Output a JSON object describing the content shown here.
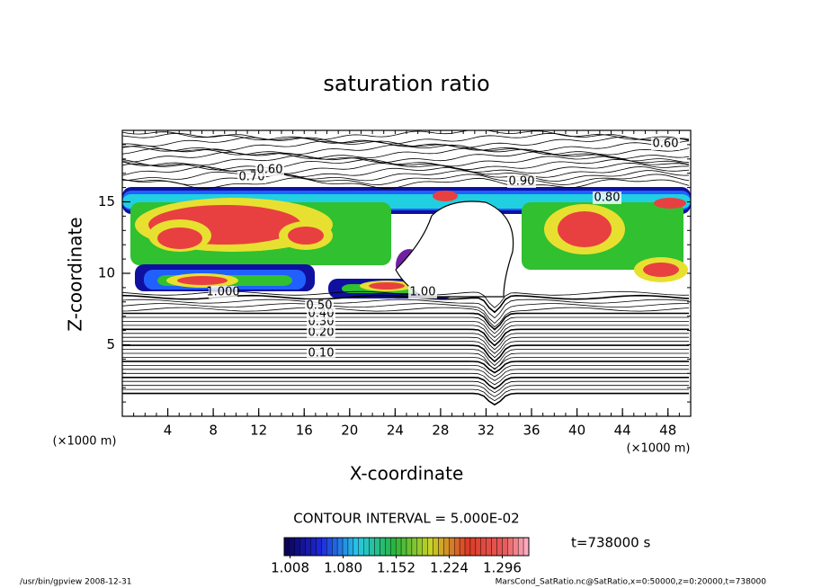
{
  "chart_data": {
    "type": "contour",
    "title": "saturation ratio",
    "x_label": "X-coordinate",
    "y_label": "Z-coordinate",
    "x_unit": "(×1000 m)",
    "y_unit": "(×1000 m)",
    "xlim": [
      0,
      50
    ],
    "ylim": [
      0,
      20
    ],
    "xticks": [
      4,
      8,
      12,
      16,
      20,
      24,
      28,
      32,
      36,
      40,
      44,
      48
    ],
    "yticks": [
      5,
      10,
      15
    ],
    "contour_interval_text": "CONTOUR INTERVAL = 5.000E-02",
    "contour_labels": [
      "0.10",
      "0.20",
      "0.30",
      "0.40",
      "0.50",
      "1.000",
      "1.00",
      "0.90",
      "0.70",
      "0.60",
      "0.80",
      "0.60"
    ],
    "colorbar_lim": [
      1.0,
      1.332
    ],
    "colorbar_ticks": [
      {
        "value": 1.008,
        "label": "1.008"
      },
      {
        "value": 1.08,
        "label": "1.080"
      },
      {
        "value": 1.152,
        "label": "1.152"
      },
      {
        "value": 1.224,
        "label": "1.224"
      },
      {
        "value": 1.296,
        "label": "1.296"
      }
    ],
    "time_label": "t=738000 s",
    "footer_left": "/usr/bin/gpview  2008-12-31",
    "footer_right": "MarsCond_SatRatio.nc@SatRatio,x=0:50000,z=0:20000,t=738000"
  }
}
